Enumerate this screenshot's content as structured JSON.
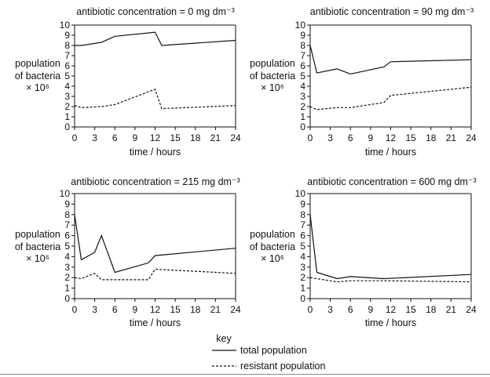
{
  "chart_data": [
    {
      "type": "line",
      "title": "antibiotic concentration = 0 mg dm⁻³",
      "ylabel": [
        "population",
        "of bacteria",
        "× 10⁶"
      ],
      "xlabel": "time / hours",
      "xlim": [
        0,
        24
      ],
      "ylim": [
        0,
        10
      ],
      "xticks": [
        "0",
        "3",
        "6",
        "9",
        "12",
        "15",
        "18",
        "21",
        "24"
      ],
      "yticks": [
        "0",
        "1",
        "2",
        "3",
        "4",
        "5",
        "6",
        "7",
        "8",
        "9",
        "10"
      ],
      "series": [
        {
          "name": "total population",
          "style": "solid",
          "x": [
            0,
            1,
            4,
            6,
            12,
            13,
            24
          ],
          "y": [
            8,
            8,
            8.3,
            8.9,
            9.3,
            8.0,
            8.5
          ]
        },
        {
          "name": "resistant population",
          "style": "dashed",
          "x": [
            0,
            1,
            4,
            6,
            12,
            13,
            24
          ],
          "y": [
            2.1,
            1.9,
            2.0,
            2.2,
            3.7,
            1.8,
            2.1
          ]
        }
      ]
    },
    {
      "type": "line",
      "title": "antibiotic concentration = 90 mg dm⁻³",
      "ylabel": [
        "population",
        "of bacteria",
        "× 10⁶"
      ],
      "xlabel": "time / hours",
      "xlim": [
        0,
        24
      ],
      "ylim": [
        0,
        10
      ],
      "xticks": [
        "0",
        "3",
        "6",
        "9",
        "12",
        "15",
        "18",
        "21",
        "24"
      ],
      "yticks": [
        "0",
        "1",
        "2",
        "3",
        "4",
        "5",
        "6",
        "7",
        "8",
        "9",
        "10"
      ],
      "series": [
        {
          "name": "total population",
          "style": "solid",
          "x": [
            0,
            1,
            4,
            6,
            11,
            12,
            24
          ],
          "y": [
            8,
            5.3,
            5.7,
            5.2,
            5.9,
            6.4,
            6.6
          ]
        },
        {
          "name": "resistant population",
          "style": "dashed",
          "x": [
            0,
            1,
            4,
            6,
            11,
            12,
            24
          ],
          "y": [
            2.0,
            1.7,
            1.9,
            1.9,
            2.4,
            3.1,
            3.9
          ]
        }
      ]
    },
    {
      "type": "line",
      "title": "antibiotic concentration = 215 mg dm⁻³",
      "ylabel": [
        "population",
        "of bacteria",
        "× 10⁶"
      ],
      "xlabel": "time / hours",
      "xlim": [
        0,
        24
      ],
      "ylim": [
        0,
        10
      ],
      "xticks": [
        "0",
        "3",
        "6",
        "9",
        "12",
        "15",
        "18",
        "21",
        "24"
      ],
      "yticks": [
        "0",
        "1",
        "2",
        "3",
        "4",
        "5",
        "6",
        "7",
        "8",
        "9",
        "10"
      ],
      "series": [
        {
          "name": "total population",
          "style": "solid",
          "x": [
            0,
            1,
            3,
            4,
            6,
            11,
            12,
            24
          ],
          "y": [
            8,
            3.7,
            4.4,
            6,
            2.5,
            3.4,
            4.1,
            4.8
          ]
        },
        {
          "name": "resistant population",
          "style": "dashed",
          "x": [
            0,
            1,
            3,
            4,
            6,
            11,
            12,
            24
          ],
          "y": [
            2.0,
            1.9,
            2.4,
            1.8,
            1.8,
            1.8,
            2.8,
            2.4
          ]
        }
      ]
    },
    {
      "type": "line",
      "title": "antibiotic concentration = 600 mg dm⁻³",
      "ylabel": [
        "population",
        "of bacteria",
        "× 10⁶"
      ],
      "xlabel": "time / hours",
      "xlim": [
        0,
        24
      ],
      "ylim": [
        0,
        10
      ],
      "xticks": [
        "0",
        "3",
        "6",
        "9",
        "12",
        "15",
        "18",
        "21",
        "24"
      ],
      "yticks": [
        "0",
        "1",
        "2",
        "3",
        "4",
        "5",
        "6",
        "7",
        "8",
        "9",
        "10"
      ],
      "series": [
        {
          "name": "total population",
          "style": "solid",
          "x": [
            0,
            1,
            4,
            6,
            11,
            24
          ],
          "y": [
            8,
            2.5,
            1.9,
            2.1,
            1.9,
            2.3
          ]
        },
        {
          "name": "resistant population",
          "style": "dashed",
          "x": [
            0,
            1,
            4,
            6,
            11,
            24
          ],
          "y": [
            2.0,
            1.9,
            1.6,
            1.7,
            1.7,
            1.6
          ]
        }
      ]
    }
  ],
  "key": {
    "title": "key",
    "items": [
      {
        "label": "total population",
        "style": "solid"
      },
      {
        "label": "resistant population",
        "style": "dashed"
      }
    ]
  }
}
